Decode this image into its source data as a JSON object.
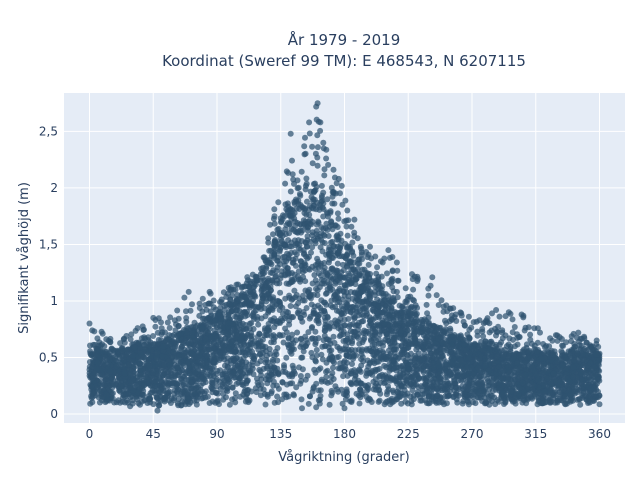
{
  "chart_data": {
    "type": "scatter",
    "title_lines": [
      "År 1979 - 2019",
      "Koordinat (Sweref 99 TM): E 468543, N 6207115"
    ],
    "xlabel": "Vågriktning (grader)",
    "ylabel": "Signifikant våghöjd (m)",
    "xlim": [
      -18,
      378
    ],
    "ylim": [
      -0.08,
      2.84
    ],
    "x_ticks": [
      0,
      45,
      90,
      135,
      180,
      225,
      270,
      315,
      360
    ],
    "x_tick_labels": [
      "0",
      "45",
      "90",
      "135",
      "180",
      "225",
      "270",
      "315",
      "360"
    ],
    "y_ticks": [
      0,
      0.5,
      1,
      1.5,
      2,
      2.5
    ],
    "y_tick_labels": [
      "0",
      "0,5",
      "1",
      "1,5",
      "2",
      "2,5"
    ],
    "grid": true,
    "marker_color": "#2f5370",
    "plot_bg": "#e5ecf6",
    "envelope": {
      "x": [
        0,
        20,
        45,
        60,
        75,
        90,
        105,
        120,
        130,
        140,
        150,
        160,
        170,
        180,
        195,
        210,
        225,
        240,
        255,
        270,
        285,
        300,
        315,
        330,
        345,
        360
      ],
      "y_bulk": [
        0.55,
        0.55,
        0.6,
        0.68,
        0.78,
        0.88,
        1.0,
        1.2,
        1.5,
        1.85,
        1.9,
        2.0,
        1.8,
        1.5,
        1.25,
        1.05,
        0.9,
        0.8,
        0.7,
        0.62,
        0.58,
        0.55,
        0.55,
        0.52,
        0.52,
        0.52
      ],
      "y_max": [
        0.8,
        0.66,
        0.85,
        0.9,
        1.06,
        1.1,
        1.15,
        1.3,
        1.85,
        2.3,
        2.5,
        2.73,
        2.3,
        2.0,
        1.45,
        1.45,
        1.25,
        1.21,
        0.95,
        0.9,
        0.93,
        0.92,
        0.8,
        0.72,
        0.72,
        0.63
      ],
      "y_min": [
        0.08,
        0.08,
        0.04,
        0.06,
        0.06,
        0.07,
        0.08,
        0.08,
        0.08,
        0.08,
        0.08,
        0.08,
        0.08,
        0.08,
        0.08,
        0.08,
        0.08,
        0.08,
        0.08,
        0.08,
        0.08,
        0.08,
        0.08,
        0.08,
        0.08,
        0.08
      ]
    },
    "outliers": [
      {
        "x": 0,
        "y": 0.8
      },
      {
        "x": 45,
        "y": 0.85
      },
      {
        "x": 67,
        "y": 1.03
      },
      {
        "x": 70,
        "y": 1.08
      },
      {
        "x": 80,
        "y": 1.02
      },
      {
        "x": 100,
        "y": 1.1
      },
      {
        "x": 118,
        "y": 1.18
      },
      {
        "x": 142,
        "y": 2.48
      },
      {
        "x": 155,
        "y": 2.58
      },
      {
        "x": 160,
        "y": 2.72
      },
      {
        "x": 161,
        "y": 2.75
      },
      {
        "x": 163,
        "y": 2.58
      },
      {
        "x": 165,
        "y": 2.4
      },
      {
        "x": 167,
        "y": 2.26
      },
      {
        "x": 176,
        "y": 2.08
      },
      {
        "x": 182,
        "y": 1.8
      },
      {
        "x": 187,
        "y": 1.72
      },
      {
        "x": 198,
        "y": 1.48
      },
      {
        "x": 211,
        "y": 1.45
      },
      {
        "x": 214,
        "y": 1.27
      },
      {
        "x": 242,
        "y": 1.21
      },
      {
        "x": 250,
        "y": 0.95
      },
      {
        "x": 265,
        "y": 0.78
      },
      {
        "x": 287,
        "y": 0.92
      },
      {
        "x": 296,
        "y": 0.9
      },
      {
        "x": 305,
        "y": 0.88
      },
      {
        "x": 318,
        "y": 0.72
      },
      {
        "x": 345,
        "y": 0.72
      },
      {
        "x": 358,
        "y": 0.65
      },
      {
        "x": 29,
        "y": 0.66
      },
      {
        "x": 37,
        "y": 0.67
      },
      {
        "x": 108,
        "y": 1.03
      },
      {
        "x": 160,
        "y": 0.06
      },
      {
        "x": 150,
        "y": 0.05
      },
      {
        "x": 48,
        "y": 0.03
      },
      {
        "x": 180,
        "y": 0.05
      }
    ]
  }
}
